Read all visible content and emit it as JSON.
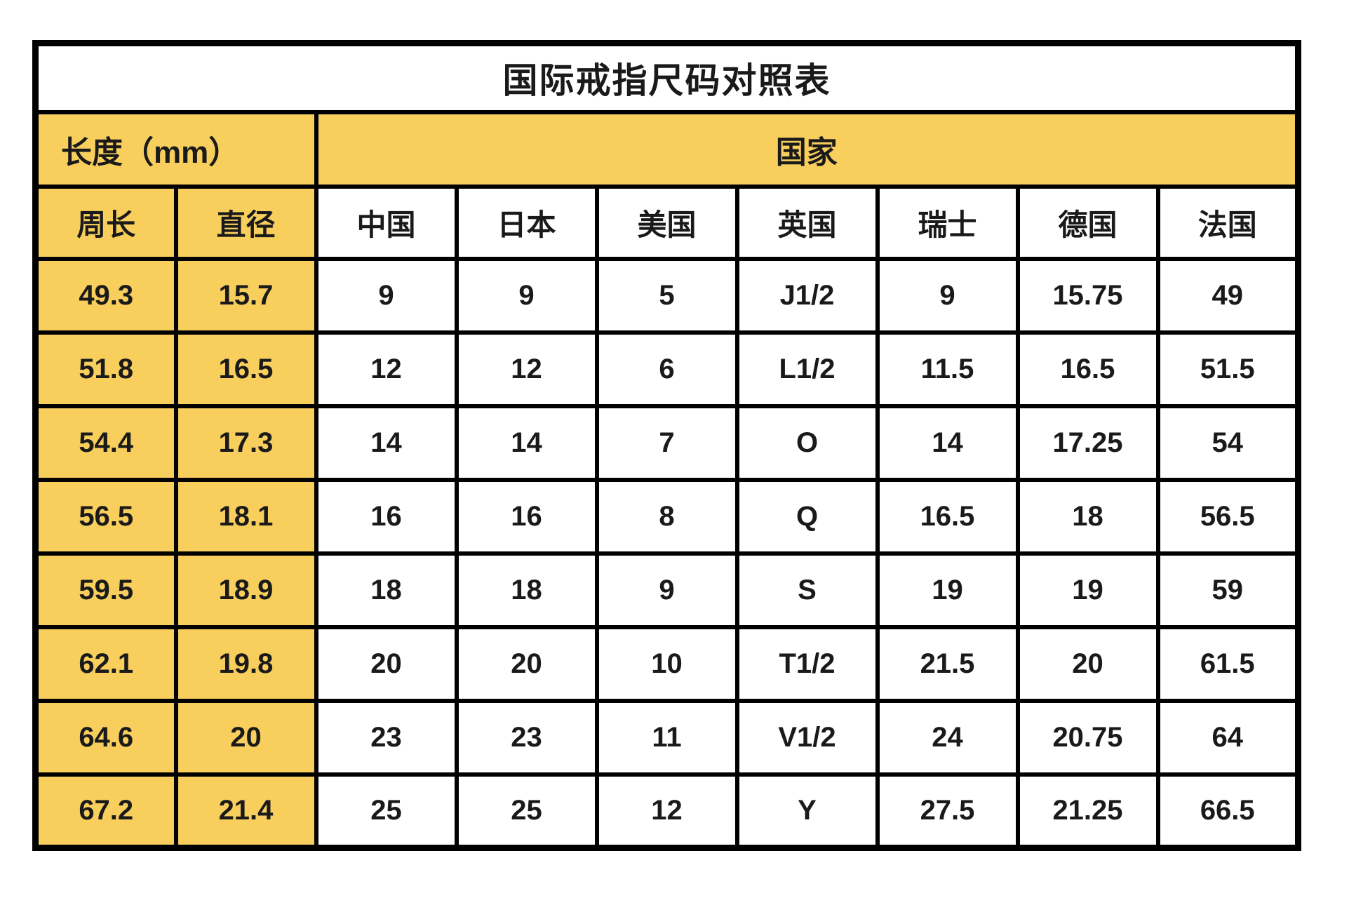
{
  "table": {
    "title": "国际戒指尺码对照表",
    "header_groups": {
      "length_label": "长度（mm）",
      "country_label": "国家"
    },
    "columns": [
      "周长",
      "直径",
      "中国",
      "日本",
      "美国",
      "英国",
      "瑞士",
      "德国",
      "法国"
    ],
    "highlighted_column_count": 2,
    "rows": [
      [
        "49.3",
        "15.7",
        "9",
        "9",
        "5",
        "J1/2",
        "9",
        "15.75",
        "49"
      ],
      [
        "51.8",
        "16.5",
        "12",
        "12",
        "6",
        "L1/2",
        "11.5",
        "16.5",
        "51.5"
      ],
      [
        "54.4",
        "17.3",
        "14",
        "14",
        "7",
        "O",
        "14",
        "17.25",
        "54"
      ],
      [
        "56.5",
        "18.1",
        "16",
        "16",
        "8",
        "Q",
        "16.5",
        "18",
        "56.5"
      ],
      [
        "59.5",
        "18.9",
        "18",
        "18",
        "9",
        "S",
        "19",
        "19",
        "59"
      ],
      [
        "62.1",
        "19.8",
        "20",
        "20",
        "10",
        "T1/2",
        "21.5",
        "20",
        "61.5"
      ],
      [
        "64.6",
        "20",
        "23",
        "23",
        "11",
        "V1/2",
        "24",
        "20.75",
        "64"
      ],
      [
        "67.2",
        "21.4",
        "25",
        "25",
        "12",
        "Y",
        "27.5",
        "21.25",
        "66.5"
      ]
    ],
    "colors": {
      "highlight": "#F8CE5D",
      "border": "#000000",
      "background": "#FFFFFF",
      "text": "#1A1A1A"
    }
  }
}
